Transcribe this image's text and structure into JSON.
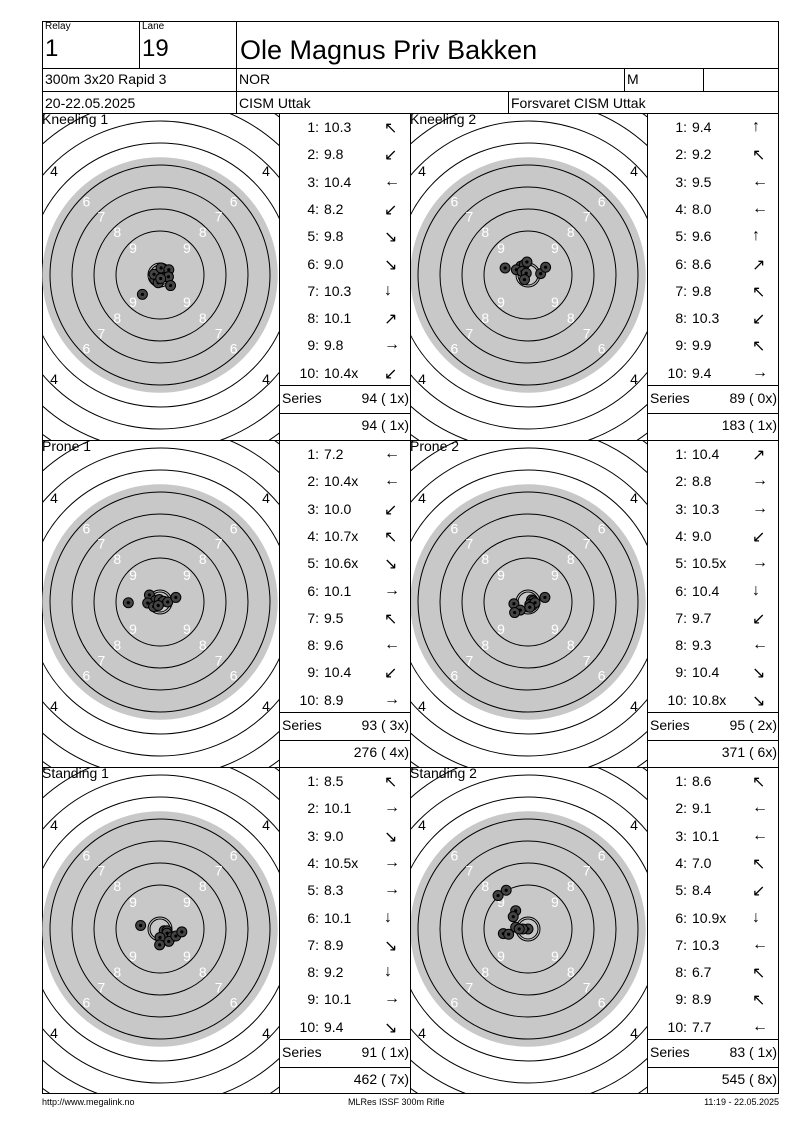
{
  "header": {
    "relay_label": "Relay",
    "relay": "1",
    "lane_label": "Lane",
    "lane": "19",
    "athlete": "Ole Magnus Priv Bakken",
    "event": "300m 3x20 Rapid 3",
    "nation": "NOR",
    "gender": "M",
    "date": "20-22.05.2025",
    "competition": "CISM Uttak",
    "club": "Forsvaret CISM Uttak"
  },
  "series_label": "Series",
  "colors": {
    "target_fill": "#c8c8c8",
    "ring": "#000000"
  },
  "panels": [
    {
      "title": "Kneeling 1",
      "shots": [
        {
          "n": "1:",
          "v": "10.3",
          "dir": "↖"
        },
        {
          "n": "2:",
          "v": "9.8",
          "dir": "↙"
        },
        {
          "n": "3:",
          "v": "10.4",
          "dir": "←"
        },
        {
          "n": "4:",
          "v": "8.2",
          "dir": "↙"
        },
        {
          "n": "5:",
          "v": "9.8",
          "dir": "↘"
        },
        {
          "n": "6:",
          "v": "9.0",
          "dir": "↘"
        },
        {
          "n": "7:",
          "v": "10.3",
          "dir": "↓"
        },
        {
          "n": "8:",
          "v": "10.1",
          "dir": "↗"
        },
        {
          "n": "9:",
          "v": "9.8",
          "dir": "→"
        },
        {
          "n": "10:",
          "v": "10.4x",
          "dir": "↙"
        }
      ],
      "series": "94 ( 1x)",
      "total": "94 ( 1x)",
      "hits": [
        [
          -0.15,
          0.12
        ],
        [
          -0.17,
          -0.02
        ],
        [
          0.03,
          -0.2
        ],
        [
          0.18,
          0.05
        ],
        [
          0.25,
          -0.15
        ],
        [
          0.24,
          0.05
        ],
        [
          -0.05,
          0.22
        ],
        [
          0.3,
          0.3
        ],
        [
          -0.5,
          0.55
        ],
        [
          0.02,
          0.1
        ]
      ]
    },
    {
      "title": "Kneeling 2",
      "shots": [
        {
          "n": "1:",
          "v": "9.4",
          "dir": "↑"
        },
        {
          "n": "2:",
          "v": "9.2",
          "dir": "↖"
        },
        {
          "n": "3:",
          "v": "9.5",
          "dir": "←"
        },
        {
          "n": "4:",
          "v": "8.0",
          "dir": "←"
        },
        {
          "n": "5:",
          "v": "9.6",
          "dir": "↑"
        },
        {
          "n": "6:",
          "v": "8.6",
          "dir": "↗"
        },
        {
          "n": "7:",
          "v": "9.8",
          "dir": "↖"
        },
        {
          "n": "8:",
          "v": "10.3",
          "dir": "↙"
        },
        {
          "n": "9:",
          "v": "9.9",
          "dir": "↖"
        },
        {
          "n": "10:",
          "v": "9.4",
          "dir": "→"
        }
      ],
      "series": "89 ( 0x)",
      "total": "183 ( 1x)",
      "hits": [
        [
          -0.2,
          -0.25
        ],
        [
          -0.1,
          -0.3
        ],
        [
          -0.33,
          -0.15
        ],
        [
          -0.17,
          -0.1
        ],
        [
          -0.05,
          -0.05
        ],
        [
          -0.65,
          -0.2
        ],
        [
          0.36,
          -0.04
        ],
        [
          0.5,
          -0.22
        ],
        [
          -0.1,
          0.13
        ],
        [
          -0.03,
          -0.37
        ]
      ]
    },
    {
      "title": "Prone 1",
      "shots": [
        {
          "n": "1:",
          "v": "7.2",
          "dir": "←"
        },
        {
          "n": "2:",
          "v": "10.4x",
          "dir": "←"
        },
        {
          "n": "3:",
          "v": "10.0",
          "dir": "↙"
        },
        {
          "n": "4:",
          "v": "10.7x",
          "dir": "↖"
        },
        {
          "n": "5:",
          "v": "10.6x",
          "dir": "↘"
        },
        {
          "n": "6:",
          "v": "10.1",
          "dir": "→"
        },
        {
          "n": "7:",
          "v": "9.5",
          "dir": "↖"
        },
        {
          "n": "8:",
          "v": "9.6",
          "dir": "←"
        },
        {
          "n": "9:",
          "v": "10.4",
          "dir": "↙"
        },
        {
          "n": "10:",
          "v": "8.9",
          "dir": "→"
        }
      ],
      "series": "93 ( 3x)",
      "total": "276 ( 4x)",
      "hits": [
        [
          -0.3,
          -0.2
        ],
        [
          -0.12,
          -0.05
        ],
        [
          -0.02,
          -0.07
        ],
        [
          0.1,
          -0.02
        ],
        [
          0.22,
          0.0
        ],
        [
          0.45,
          -0.13
        ],
        [
          -0.35,
          0.03
        ],
        [
          -0.18,
          0.13
        ],
        [
          -0.05,
          0.1
        ],
        [
          -0.9,
          0.02
        ]
      ]
    },
    {
      "title": "Prone 2",
      "shots": [
        {
          "n": "1:",
          "v": "10.4",
          "dir": "↗"
        },
        {
          "n": "2:",
          "v": "8.8",
          "dir": "→"
        },
        {
          "n": "3:",
          "v": "10.3",
          "dir": "→"
        },
        {
          "n": "4:",
          "v": "9.0",
          "dir": "↙"
        },
        {
          "n": "5:",
          "v": "10.5x",
          "dir": "→"
        },
        {
          "n": "6:",
          "v": "10.4",
          "dir": "↓"
        },
        {
          "n": "7:",
          "v": "9.7",
          "dir": "↙"
        },
        {
          "n": "8:",
          "v": "9.3",
          "dir": "←"
        },
        {
          "n": "9:",
          "v": "10.4",
          "dir": "↘"
        },
        {
          "n": "10:",
          "v": "10.8x",
          "dir": "↘"
        }
      ],
      "series": "95 ( 2x)",
      "total": "371 ( 6x)",
      "hits": [
        [
          0.1,
          -0.06
        ],
        [
          0.15,
          -0.03
        ],
        [
          0.05,
          0.07
        ],
        [
          0.12,
          0.1
        ],
        [
          0.2,
          0.02
        ],
        [
          0.48,
          -0.13
        ],
        [
          -0.4,
          0.05
        ],
        [
          -0.22,
          0.23
        ],
        [
          -0.38,
          0.3
        ],
        [
          0.05,
          0.15
        ]
      ]
    },
    {
      "title": "Standing 1",
      "shots": [
        {
          "n": "1:",
          "v": "8.5",
          "dir": "↖"
        },
        {
          "n": "2:",
          "v": "10.1",
          "dir": "→"
        },
        {
          "n": "3:",
          "v": "9.0",
          "dir": "↘"
        },
        {
          "n": "4:",
          "v": "10.5x",
          "dir": "→"
        },
        {
          "n": "5:",
          "v": "8.3",
          "dir": "→"
        },
        {
          "n": "6:",
          "v": "10.1",
          "dir": "↓"
        },
        {
          "n": "7:",
          "v": "8.9",
          "dir": "↘"
        },
        {
          "n": "8:",
          "v": "9.2",
          "dir": "↓"
        },
        {
          "n": "9:",
          "v": "10.1",
          "dir": "→"
        },
        {
          "n": "10:",
          "v": "9.4",
          "dir": "↘"
        }
      ],
      "series": "91 ( 1x)",
      "total": "462 ( 7x)",
      "hits": [
        [
          0.12,
          0.05
        ],
        [
          0.2,
          0.05
        ],
        [
          0.2,
          0.12
        ],
        [
          0.35,
          0.22
        ],
        [
          0.25,
          0.35
        ],
        [
          0.45,
          0.2
        ],
        [
          0.62,
          0.08
        ],
        [
          -0.55,
          -0.1
        ],
        [
          0.0,
          0.24
        ],
        [
          -0.01,
          0.45
        ]
      ]
    },
    {
      "title": "Standing 2",
      "shots": [
        {
          "n": "1:",
          "v": "8.6",
          "dir": "↖"
        },
        {
          "n": "2:",
          "v": "9.1",
          "dir": "←"
        },
        {
          "n": "3:",
          "v": "10.1",
          "dir": "←"
        },
        {
          "n": "4:",
          "v": "7.0",
          "dir": "↖"
        },
        {
          "n": "5:",
          "v": "8.4",
          "dir": "↙"
        },
        {
          "n": "6:",
          "v": "10.9x",
          "dir": "↓"
        },
        {
          "n": "7:",
          "v": "10.3",
          "dir": "←"
        },
        {
          "n": "8:",
          "v": "6.7",
          "dir": "↖"
        },
        {
          "n": "9:",
          "v": "8.9",
          "dir": "↖"
        },
        {
          "n": "10:",
          "v": "7.7",
          "dir": "←"
        }
      ],
      "series": "83 ( 1x)",
      "total": "545 ( 8x)",
      "hits": [
        [
          -0.85,
          -0.95
        ],
        [
          -0.62,
          -1.1
        ],
        [
          -0.35,
          -0.52
        ],
        [
          -0.42,
          -0.35
        ],
        [
          -0.35,
          -0.05
        ],
        [
          0.0,
          0.0
        ],
        [
          -0.15,
          0.0
        ],
        [
          -0.25,
          0.0
        ],
        [
          -0.7,
          0.13
        ],
        [
          -0.55,
          0.15
        ]
      ]
    }
  ],
  "footer": {
    "url": "http://www.megalink.no",
    "software": "MLRes ISSF 300m Rifle",
    "printed": "11:19 - 22.05.2025"
  }
}
